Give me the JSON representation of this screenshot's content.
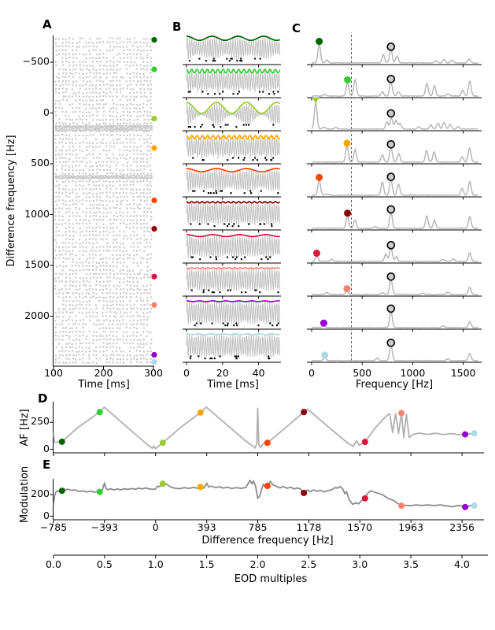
{
  "panels": {
    "A": {
      "label": "A",
      "xlabel": "Time [ms]",
      "ylabel": "Difference frequency [Hz]",
      "xticks": [
        "100",
        "200",
        "300"
      ],
      "yticks": [
        "−500",
        "0",
        "500",
        "1000",
        "1500",
        "2000"
      ]
    },
    "B": {
      "label": "B",
      "xlabel": "Time [ms]",
      "xticks": [
        "0",
        "20",
        "40"
      ]
    },
    "C": {
      "label": "C",
      "xlabel": "Frequency [Hz]",
      "xticks": [
        "0",
        "500",
        "1000",
        "1500"
      ]
    },
    "D": {
      "label": "D",
      "ylabel": "AF [Hz]",
      "yticks": [
        "0",
        "250"
      ]
    },
    "E": {
      "label": "E",
      "ylabel": "Modulation",
      "yticks": [
        "0",
        "200"
      ],
      "xlabel": "Difference frequency [Hz]",
      "xticks": [
        "−785",
        "−393",
        "0",
        "393",
        "785",
        "1178",
        "1570",
        "1963",
        "2356"
      ]
    },
    "EOD": {
      "xlabel": "EOD multiples",
      "xticks": [
        "0.0",
        "0.5",
        "1.0",
        "1.5",
        "2.0",
        "2.5",
        "3.0",
        "3.5",
        "4.0"
      ]
    }
  },
  "chart_data": {
    "type": "multi-panel",
    "eod_frequency_hz": 785,
    "colors": {
      "raster": "#c9c9c9",
      "carrier": "#c0c0c0",
      "spectrum": "#b3b3b3",
      "line_D": "#b0b0b0",
      "line_E": "#8c8c8c",
      "spike": "#000000",
      "eod_marker_fill": "#cccccc",
      "eod_marker_stroke": "#000000"
    },
    "panel_A": {
      "type": "raster",
      "xlim": [
        100,
        302
      ],
      "ylim": [
        -763,
        2492
      ],
      "xticks": [
        100,
        200,
        300
      ],
      "yticks": [
        -500,
        0,
        500,
        1000,
        1500,
        2000
      ]
    },
    "panel_B": {
      "type": "waveforms",
      "xlim_ms": [
        0,
        52
      ],
      "xticks": [
        0,
        20,
        40
      ],
      "carrier_hz": 785
    },
    "panel_C": {
      "type": "spectra",
      "xlim_hz": [
        0,
        1655
      ],
      "xticks": [
        0,
        500,
        1000,
        1500
      ],
      "dashed_line_hz": 393,
      "eod_peak_hz": 785
    },
    "panel_D": {
      "type": "line",
      "yticks": [
        0,
        250
      ],
      "line": [
        [
          -785,
          150
        ],
        [
          -778,
          65
        ],
        [
          -720,
          70
        ],
        [
          -600,
          200
        ],
        [
          -430,
          345
        ],
        [
          -395,
          390
        ],
        [
          -200,
          185
        ],
        [
          -60,
          40
        ],
        [
          -25,
          8
        ],
        [
          -15,
          30
        ],
        [
          0,
          6
        ],
        [
          55,
          60
        ],
        [
          200,
          210
        ],
        [
          345,
          340
        ],
        [
          390,
          390
        ],
        [
          550,
          225
        ],
        [
          700,
          70
        ],
        [
          750,
          28
        ],
        [
          765,
          12
        ],
        [
          778,
          55
        ],
        [
          785,
          380
        ],
        [
          793,
          45
        ],
        [
          805,
          18
        ],
        [
          835,
          60
        ],
        [
          860,
          60
        ],
        [
          1000,
          200
        ],
        [
          1140,
          345
        ],
        [
          1165,
          372
        ],
        [
          1200,
          340
        ],
        [
          1350,
          185
        ],
        [
          1480,
          55
        ],
        [
          1520,
          28
        ],
        [
          1545,
          78
        ],
        [
          1565,
          38
        ],
        [
          1610,
          68
        ],
        [
          1690,
          200
        ],
        [
          1770,
          305
        ],
        [
          1800,
          330
        ],
        [
          1822,
          155
        ],
        [
          1845,
          330
        ],
        [
          1868,
          148
        ],
        [
          1890,
          335
        ],
        [
          1908,
          108
        ],
        [
          1928,
          325
        ],
        [
          1950,
          108
        ],
        [
          1980,
          138
        ],
        [
          2030,
          150
        ],
        [
          2090,
          137
        ],
        [
          2150,
          149
        ],
        [
          2210,
          136
        ],
        [
          2270,
          145
        ],
        [
          2330,
          136
        ],
        [
          2380,
          138
        ],
        [
          2420,
          143
        ],
        [
          2455,
          148
        ]
      ]
    },
    "panel_E": {
      "type": "line",
      "yticks": [
        0,
        200
      ],
      "xticks": [
        -785,
        -393,
        0,
        393,
        785,
        1178,
        1570,
        1963,
        2356
      ],
      "line": [
        [
          -785,
          95
        ],
        [
          -782,
          140
        ],
        [
          -776,
          190
        ],
        [
          -768,
          220
        ],
        [
          -755,
          235
        ],
        [
          -740,
          228
        ],
        [
          -720,
          235
        ],
        [
          -705,
          255
        ],
        [
          -695,
          240
        ],
        [
          -675,
          250
        ],
        [
          -655,
          240
        ],
        [
          -620,
          242
        ],
        [
          -590,
          230
        ],
        [
          -560,
          234
        ],
        [
          -530,
          224
        ],
        [
          -500,
          232
        ],
        [
          -470,
          222
        ],
        [
          -445,
          228
        ],
        [
          -430,
          225
        ],
        [
          -410,
          240
        ],
        [
          -393,
          308
        ],
        [
          -383,
          260
        ],
        [
          -368,
          244
        ],
        [
          -345,
          254
        ],
        [
          -320,
          242
        ],
        [
          -295,
          252
        ],
        [
          -268,
          244
        ],
        [
          -240,
          254
        ],
        [
          -212,
          247
        ],
        [
          -185,
          255
        ],
        [
          -158,
          249
        ],
        [
          -130,
          259
        ],
        [
          -102,
          252
        ],
        [
          -75,
          262
        ],
        [
          -48,
          252
        ],
        [
          -20,
          248
        ],
        [
          0,
          252
        ],
        [
          15,
          278
        ],
        [
          30,
          272
        ],
        [
          45,
          296
        ],
        [
          55,
          300
        ],
        [
          70,
          291
        ],
        [
          85,
          296
        ],
        [
          100,
          282
        ],
        [
          120,
          268
        ],
        [
          150,
          258
        ],
        [
          185,
          254
        ],
        [
          220,
          264
        ],
        [
          255,
          256
        ],
        [
          290,
          266
        ],
        [
          320,
          258
        ],
        [
          345,
          271
        ],
        [
          370,
          258
        ],
        [
          393,
          305
        ],
        [
          408,
          270
        ],
        [
          430,
          278
        ],
        [
          458,
          264
        ],
        [
          490,
          272
        ],
        [
          520,
          260
        ],
        [
          552,
          268
        ],
        [
          585,
          256
        ],
        [
          620,
          264
        ],
        [
          658,
          256
        ],
        [
          695,
          266
        ],
        [
          725,
          332
        ],
        [
          740,
          300
        ],
        [
          752,
          325
        ],
        [
          768,
          280
        ],
        [
          785,
          165
        ],
        [
          800,
          185
        ],
        [
          812,
          235
        ],
        [
          828,
          295
        ],
        [
          842,
          270
        ],
        [
          858,
          278
        ],
        [
          872,
          305
        ],
        [
          884,
          322
        ],
        [
          900,
          292
        ],
        [
          928,
          276
        ],
        [
          955,
          262
        ],
        [
          982,
          274
        ],
        [
          1010,
          258
        ],
        [
          1038,
          268
        ],
        [
          1065,
          252
        ],
        [
          1092,
          262
        ],
        [
          1118,
          248
        ],
        [
          1140,
          216
        ],
        [
          1165,
          242
        ],
        [
          1190,
          227
        ],
        [
          1215,
          244
        ],
        [
          1240,
          228
        ],
        [
          1268,
          240
        ],
        [
          1295,
          224
        ],
        [
          1322,
          236
        ],
        [
          1350,
          242
        ],
        [
          1378,
          264
        ],
        [
          1400,
          260
        ],
        [
          1418,
          274
        ],
        [
          1438,
          254
        ],
        [
          1455,
          207
        ],
        [
          1468,
          227
        ],
        [
          1488,
          152
        ],
        [
          1515,
          110
        ],
        [
          1540,
          124
        ],
        [
          1560,
          114
        ],
        [
          1582,
          142
        ],
        [
          1610,
          166
        ],
        [
          1632,
          214
        ],
        [
          1652,
          234
        ],
        [
          1678,
          224
        ],
        [
          1705,
          214
        ],
        [
          1745,
          198
        ],
        [
          1788,
          164
        ],
        [
          1828,
          147
        ],
        [
          1858,
          120
        ],
        [
          1890,
          98
        ],
        [
          1925,
          101
        ],
        [
          1958,
          96
        ],
        [
          2000,
          105
        ],
        [
          2048,
          100
        ],
        [
          2095,
          104
        ],
        [
          2140,
          98
        ],
        [
          2188,
          105
        ],
        [
          2235,
          96
        ],
        [
          2282,
          87
        ],
        [
          2330,
          100
        ],
        [
          2380,
          86
        ],
        [
          2420,
          96
        ],
        [
          2450,
          99
        ],
        [
          2458,
          105
        ]
      ]
    },
    "eod_axis": {
      "ticks": [
        0,
        0.5,
        1,
        1.5,
        2,
        2.5,
        3,
        3.5,
        4
      ]
    },
    "conditions": [
      {
        "color": "#006400",
        "df_hz": -720,
        "af_hz": 70,
        "modulation": 235,
        "beat_depth": 0.35,
        "af_peak_hz": 75,
        "marker": "circle",
        "spectrum_peaks": [
          [
            75,
            0.72
          ],
          [
            150,
            0.12
          ],
          [
            710,
            0.3
          ],
          [
            785,
            0.52
          ],
          [
            845,
            0.25
          ],
          [
            1230,
            0.08
          ],
          [
            1310,
            0.13
          ],
          [
            1390,
            0.1
          ],
          [
            1560,
            0.16
          ]
        ]
      },
      {
        "color": "#32cd32",
        "df_hz": -430,
        "af_hz": 345,
        "modulation": 225,
        "beat_depth": 0.32,
        "af_peak_hz": 355,
        "marker": "circle",
        "spectrum_peaks": [
          [
            130,
            0.06
          ],
          [
            355,
            0.52
          ],
          [
            430,
            0.62
          ],
          [
            700,
            0.16
          ],
          [
            785,
            0.55
          ],
          [
            860,
            0.16
          ],
          [
            1140,
            0.48
          ],
          [
            1215,
            0.38
          ],
          [
            1350,
            0.08
          ],
          [
            1495,
            0.22
          ],
          [
            1565,
            0.58
          ]
        ]
      },
      {
        "color": "#9acd32",
        "df_hz": 55,
        "af_hz": 60,
        "modulation": 300,
        "beat_depth": 0.93,
        "af_peak_hz": 40,
        "marker": "triangle-down",
        "spectrum_peaks": [
          [
            40,
            1.0
          ],
          [
            120,
            0.08
          ],
          [
            240,
            0.06
          ],
          [
            745,
            0.28
          ],
          [
            790,
            0.42
          ],
          [
            835,
            0.32
          ],
          [
            875,
            0.22
          ],
          [
            1060,
            0.08
          ],
          [
            1180,
            0.16
          ],
          [
            1250,
            0.22
          ],
          [
            1310,
            0.24
          ],
          [
            1370,
            0.18
          ],
          [
            1450,
            0.1
          ]
        ]
      },
      {
        "color": "#ffa500",
        "df_hz": 345,
        "af_hz": 340,
        "modulation": 270,
        "beat_depth": 0.3,
        "af_peak_hz": 350,
        "marker": "circle",
        "spectrum_peaks": [
          [
            350,
            0.62
          ],
          [
            430,
            0.48
          ],
          [
            700,
            0.28
          ],
          [
            785,
            0.58
          ],
          [
            862,
            0.33
          ],
          [
            1138,
            0.45
          ],
          [
            1212,
            0.4
          ],
          [
            1490,
            0.2
          ],
          [
            1563,
            0.55
          ]
        ]
      },
      {
        "color": "#ff4500",
        "df_hz": 860,
        "af_hz": 60,
        "modulation": 280,
        "beat_depth": 0.28,
        "af_peak_hz": 75,
        "marker": "circle",
        "spectrum_peaks": [
          [
            75,
            0.58
          ],
          [
            150,
            0.06
          ],
          [
            700,
            0.5
          ],
          [
            785,
            0.6
          ],
          [
            860,
            0.42
          ],
          [
            1490,
            0.25
          ],
          [
            1565,
            0.52
          ]
        ]
      },
      {
        "color": "#8b0000",
        "df_hz": 1140,
        "af_hz": 345,
        "modulation": 215,
        "beat_depth": 0.12,
        "af_peak_hz": 355,
        "marker": "circle",
        "spectrum_peaks": [
          [
            355,
            0.48
          ],
          [
            430,
            0.32
          ],
          [
            630,
            0.06
          ],
          [
            785,
            0.62
          ],
          [
            1140,
            0.48
          ],
          [
            1215,
            0.3
          ],
          [
            1565,
            0.45
          ]
        ]
      },
      {
        "color": "#dc143c",
        "df_hz": 1610,
        "af_hz": 68,
        "modulation": 165,
        "beat_depth": 0.16,
        "af_peak_hz": 50,
        "marker": "circle",
        "spectrum_peaks": [
          [
            50,
            0.22
          ],
          [
            200,
            0.08
          ],
          [
            735,
            0.28
          ],
          [
            785,
            0.52
          ],
          [
            838,
            0.18
          ],
          [
            1300,
            0.08
          ],
          [
            1400,
            0.1
          ],
          [
            1565,
            0.32
          ]
        ]
      },
      {
        "color": "#fa8072",
        "df_hz": 1890,
        "af_hz": 335,
        "modulation": 97,
        "beat_depth": 0.08,
        "af_peak_hz": 350,
        "marker": "circle",
        "spectrum_peaks": [
          [
            150,
            0.08
          ],
          [
            350,
            0.13
          ],
          [
            700,
            0.07
          ],
          [
            785,
            0.58
          ],
          [
            1100,
            0.06
          ],
          [
            1350,
            0.08
          ],
          [
            1565,
            0.28
          ]
        ]
      },
      {
        "color": "#9400d3",
        "df_hz": 2380,
        "af_hz": 138,
        "modulation": 85,
        "beat_depth": 0.07,
        "af_peak_hz": 120,
        "marker": "circle",
        "spectrum_peaks": [
          [
            120,
            0.08
          ],
          [
            785,
            0.62
          ],
          [
            1300,
            0.07
          ],
          [
            1565,
            0.22
          ]
        ]
      },
      {
        "color": "#add8e6",
        "df_hz": 2450,
        "af_hz": 148,
        "modulation": 98,
        "beat_depth": 0.06,
        "af_peak_hz": 130,
        "marker": "circle",
        "spectrum_peaks": [
          [
            130,
            0.12
          ],
          [
            650,
            0.1
          ],
          [
            785,
            0.58
          ],
          [
            1350,
            0.07
          ],
          [
            1565,
            0.28
          ]
        ]
      }
    ]
  }
}
